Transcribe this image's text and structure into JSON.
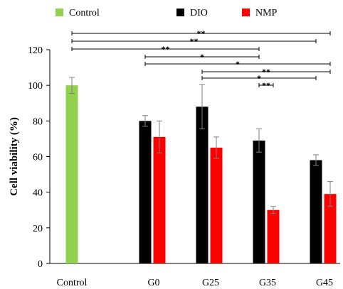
{
  "chart_data": {
    "type": "bar",
    "title": "",
    "xlabel": "",
    "ylabel": "Cell viability (%)",
    "ylim": [
      0,
      120
    ],
    "yticks": [
      0,
      20,
      40,
      60,
      80,
      100,
      120
    ],
    "grid": false,
    "legend_position": "top-center",
    "categories": [
      "Control",
      "G0",
      "G25",
      "G35",
      "G45"
    ],
    "series": [
      {
        "name": "Control",
        "color": "#92d050",
        "values": [
          100,
          null,
          null,
          null,
          null
        ],
        "errors": [
          4.5,
          null,
          null,
          null,
          null
        ]
      },
      {
        "name": "DIO",
        "color": "#000000",
        "values": [
          null,
          80,
          88,
          69,
          58
        ],
        "errors": [
          null,
          3,
          12.5,
          6.5,
          3
        ]
      },
      {
        "name": "NMP",
        "color": "#ff0000",
        "values": [
          null,
          71,
          65,
          30,
          39
        ],
        "errors": [
          null,
          9,
          6,
          2,
          7
        ]
      }
    ],
    "significance": [
      {
        "from": "Control",
        "to": "G45",
        "from_series": "Control",
        "to_series": "NMP",
        "label": "**"
      },
      {
        "from": "Control",
        "to": "G45",
        "from_series": "Control",
        "to_series": "DIO",
        "label": "**"
      },
      {
        "from": "Control",
        "to": "G35",
        "from_series": "Control",
        "to_series": "DIO",
        "label": "**"
      },
      {
        "from": "G0",
        "to": "G35",
        "from_series": "DIO",
        "to_series": "DIO",
        "label": "*"
      },
      {
        "from": "G0",
        "to": "G45",
        "from_series": "DIO",
        "to_series": "NMP",
        "label": "*"
      },
      {
        "from": "G25",
        "to": "G45",
        "from_series": "DIO",
        "to_series": "NMP",
        "label": "**"
      },
      {
        "from": "G25",
        "to": "G45",
        "from_series": "DIO",
        "to_series": "DIO",
        "label": "*"
      },
      {
        "from": "G35",
        "to": "G35",
        "from_series": "DIO",
        "to_series": "NMP",
        "label": "**"
      }
    ]
  }
}
